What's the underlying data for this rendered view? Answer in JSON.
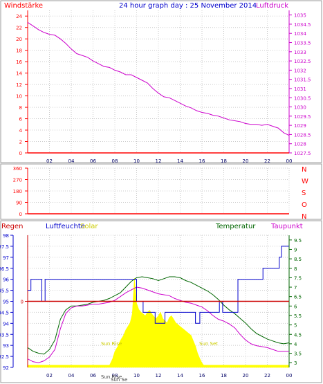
{
  "chart_data": [
    {
      "type": "line",
      "title": "24 hour graph day : 25 November 2014",
      "left_axis_label": "Windstärke",
      "right_axis_label": "Luftdruck",
      "x_ticks": [
        "02",
        "04",
        "06",
        "08",
        "10",
        "12",
        "14",
        "16",
        "18",
        "20",
        "22",
        "00"
      ],
      "x_range_hours": [
        0,
        24
      ],
      "left_ticks": [
        "0",
        "2",
        "4",
        "6",
        "8",
        "10",
        "12",
        "14",
        "16",
        "18",
        "20",
        "22",
        "24"
      ],
      "left_range": [
        0,
        25
      ],
      "right_ticks": [
        "1027.5",
        "1028",
        "1028.5",
        "1029",
        "1029.5",
        "1030",
        "1030.5",
        "1031",
        "1031.5",
        "1032",
        "1032.5",
        "1033",
        "1033.5",
        "1034",
        "1034.5",
        "1035"
      ],
      "right_range": [
        1027.5,
        1035.25
      ],
      "series": [
        {
          "name": "Luftdruck",
          "axis": "right",
          "color": "#cc00cc",
          "x": [
            0,
            0.5,
            1,
            1.5,
            2,
            2.5,
            3,
            3.5,
            4,
            4.5,
            5,
            5.5,
            6,
            6.5,
            7,
            7.5,
            8,
            8.5,
            9,
            9.5,
            10,
            10.5,
            11,
            11.5,
            12,
            12.5,
            13,
            13.5,
            14,
            14.5,
            15,
            15.5,
            16,
            16.5,
            17,
            17.5,
            18,
            18.5,
            19,
            19.5,
            20,
            20.5,
            21,
            21.5,
            22,
            22.5,
            23,
            23.5,
            24
          ],
          "y": [
            1034.6,
            1034.4,
            1034.2,
            1034.05,
            1033.95,
            1033.9,
            1033.7,
            1033.45,
            1033.15,
            1032.9,
            1032.8,
            1032.7,
            1032.5,
            1032.35,
            1032.2,
            1032.15,
            1032.0,
            1031.9,
            1031.75,
            1031.75,
            1031.6,
            1031.45,
            1031.3,
            1031.0,
            1030.75,
            1030.55,
            1030.5,
            1030.35,
            1030.2,
            1030.05,
            1029.95,
            1029.8,
            1029.7,
            1029.65,
            1029.55,
            1029.5,
            1029.4,
            1029.3,
            1029.25,
            1029.2,
            1029.1,
            1029.05,
            1029.05,
            1029.0,
            1029.05,
            1028.95,
            1028.85,
            1028.6,
            1028.45
          ]
        },
        {
          "name": "Windstärke",
          "axis": "left",
          "color": "#ff0000",
          "x": [
            0,
            24
          ],
          "y": [
            0,
            0
          ]
        }
      ],
      "grid": true
    },
    {
      "type": "line",
      "right_axis_labels": [
        "N",
        "W",
        "S",
        "O",
        "N"
      ],
      "left_ticks": [
        "0",
        "90",
        "180",
        "270",
        "360"
      ],
      "left_range": [
        0,
        360
      ],
      "x_range_hours": [
        0,
        24
      ],
      "series": [
        {
          "name": "Windrichtung",
          "color": "#ff0000",
          "x": [
            0,
            24
          ],
          "y": [
            0,
            0
          ]
        }
      ],
      "grid": true
    },
    {
      "type": "line",
      "labels": {
        "rain": "Regen",
        "humidity": "Luftfeuchte",
        "solar": "Solar",
        "temperature": "Temperatur",
        "dewpoint": "Taupunkt"
      },
      "x_ticks": [
        "02",
        "04",
        "06",
        "08",
        "10",
        "12",
        "14",
        "16",
        "18",
        "20",
        "22",
        "00"
      ],
      "x_range_hours": [
        0,
        24
      ],
      "hum_ticks": [
        "92",
        "92.5",
        "93",
        "93.5",
        "94",
        "94.5",
        "95",
        "95.5",
        "96",
        "96.5",
        "97",
        "97.5",
        "98"
      ],
      "hum_range": [
        92,
        98
      ],
      "temp_ticks": [
        "3",
        "3.5",
        "4",
        "4.5",
        "5",
        "5.5",
        "6",
        "6.5",
        "7",
        "7.5",
        "8",
        "8.5",
        "9",
        "9.5"
      ],
      "temp_range": [
        2.75,
        9.75
      ],
      "rain_ticks": [
        "0"
      ],
      "sun_labels": {
        "sunrise": "Sun Rise",
        "sunset": "Sun Set",
        "sunrise_axis": "Sun Rise",
        "sunset_axis": "Sun Se"
      },
      "series": [
        {
          "name": "Temperatur",
          "axis": "temp",
          "color": "#006600",
          "x": [
            0,
            0.5,
            1,
            1.5,
            2,
            2.5,
            3,
            3.5,
            4,
            4.5,
            5,
            5.5,
            6,
            6.5,
            7,
            7.5,
            8,
            8.5,
            9,
            9.5,
            10,
            10.5,
            11,
            11.5,
            12,
            12.5,
            13,
            13.5,
            14,
            14.5,
            15,
            15.5,
            16,
            16.5,
            17,
            17.5,
            18,
            18.5,
            19,
            19.5,
            20,
            20.5,
            21,
            21.5,
            22,
            22.5,
            23,
            23.5,
            24
          ],
          "y": [
            3.8,
            3.6,
            3.5,
            3.45,
            3.7,
            4.2,
            5.3,
            5.8,
            6.0,
            6.0,
            6.05,
            6.1,
            6.2,
            6.25,
            6.3,
            6.4,
            6.55,
            6.7,
            7.0,
            7.3,
            7.5,
            7.55,
            7.5,
            7.45,
            7.35,
            7.45,
            7.55,
            7.55,
            7.5,
            7.35,
            7.25,
            7.1,
            6.95,
            6.8,
            6.6,
            6.35,
            6.05,
            5.8,
            5.6,
            5.35,
            5.1,
            4.8,
            4.55,
            4.4,
            4.25,
            4.15,
            4.05,
            4.0,
            4.05
          ]
        },
        {
          "name": "Taupunkt",
          "axis": "temp",
          "color": "#cc00cc",
          "x": [
            0,
            0.5,
            1,
            1.5,
            2,
            2.5,
            3,
            3.5,
            4,
            4.5,
            5,
            5.5,
            6,
            6.5,
            7,
            7.5,
            8,
            8.5,
            9,
            9.5,
            10,
            10.5,
            11,
            11.5,
            12,
            12.5,
            13,
            13.5,
            14,
            14.5,
            15,
            15.5,
            16,
            16.5,
            17,
            17.5,
            18,
            18.5,
            19,
            19.5,
            20,
            20.5,
            21,
            21.5,
            22,
            22.5,
            23,
            23.5,
            24
          ],
          "y": [
            3.2,
            3.05,
            3.0,
            3.1,
            3.3,
            3.7,
            4.8,
            5.6,
            5.9,
            6.0,
            6.0,
            6.05,
            6.1,
            6.1,
            6.15,
            6.2,
            6.3,
            6.5,
            6.7,
            6.85,
            7.0,
            6.95,
            6.85,
            6.75,
            6.65,
            6.6,
            6.55,
            6.4,
            6.3,
            6.2,
            6.15,
            6.05,
            5.95,
            5.75,
            5.5,
            5.3,
            5.2,
            5.05,
            4.85,
            4.5,
            4.2,
            4.0,
            3.9,
            3.85,
            3.8,
            3.7,
            3.6,
            3.6,
            3.6
          ]
        },
        {
          "name": "Luftfeuchte",
          "axis": "hum",
          "color": "#0000cc",
          "x": [
            0,
            0.3,
            0.3,
            1.3,
            1.3,
            1.6,
            1.6,
            2.6,
            2.6,
            9.5,
            9.5,
            10.0,
            10.0,
            10.6,
            10.6,
            11.7,
            11.7,
            12.6,
            12.6,
            15.4,
            15.4,
            15.8,
            15.8,
            17.6,
            17.6,
            17.9,
            17.9,
            19.3,
            19.3,
            21.6,
            21.6,
            23.1,
            23.1,
            23.3,
            23.3,
            24
          ],
          "y": [
            95.5,
            95.5,
            96,
            96,
            95,
            95,
            96,
            96,
            96,
            96,
            96,
            96,
            95,
            95,
            94.5,
            94.5,
            94,
            94,
            94.5,
            94.5,
            94,
            94,
            94.5,
            94.5,
            95,
            95,
            94.5,
            94.5,
            96,
            96,
            96.5,
            96.5,
            97,
            97,
            97.5,
            97.5
          ]
        },
        {
          "name": "Regen",
          "axis": "rain",
          "color": "#cc0000",
          "x": [
            0,
            24
          ],
          "y": [
            0,
            0
          ]
        }
      ],
      "solar": {
        "name": "Solar",
        "color": "#ffff00",
        "x": [
          0,
          7.3,
          7.5,
          7.8,
          8.0,
          8.3,
          8.5,
          8.8,
          9.0,
          9.2,
          9.4,
          9.6,
          9.8,
          10.0,
          10.2,
          10.4,
          10.6,
          10.8,
          11.0,
          11.2,
          11.4,
          11.6,
          11.8,
          12.0,
          12.2,
          12.4,
          12.6,
          12.8,
          13.0,
          13.2,
          13.4,
          13.6,
          13.8,
          14.0,
          14.2,
          14.4,
          14.6,
          14.8,
          15.0,
          15.2,
          15.4,
          15.6,
          15.8,
          16.0,
          16.2,
          16.4,
          24
        ],
        "y": [
          0,
          0,
          2,
          10,
          18,
          24,
          30,
          36,
          42,
          46,
          50,
          60,
          100,
          72,
          65,
          62,
          60,
          58,
          62,
          64,
          60,
          57,
          55,
          58,
          62,
          55,
          52,
          50,
          56,
          58,
          54,
          50,
          48,
          46,
          44,
          42,
          40,
          38,
          36,
          30,
          24,
          16,
          10,
          5,
          2,
          0,
          0
        ]
      },
      "grid": true
    }
  ]
}
